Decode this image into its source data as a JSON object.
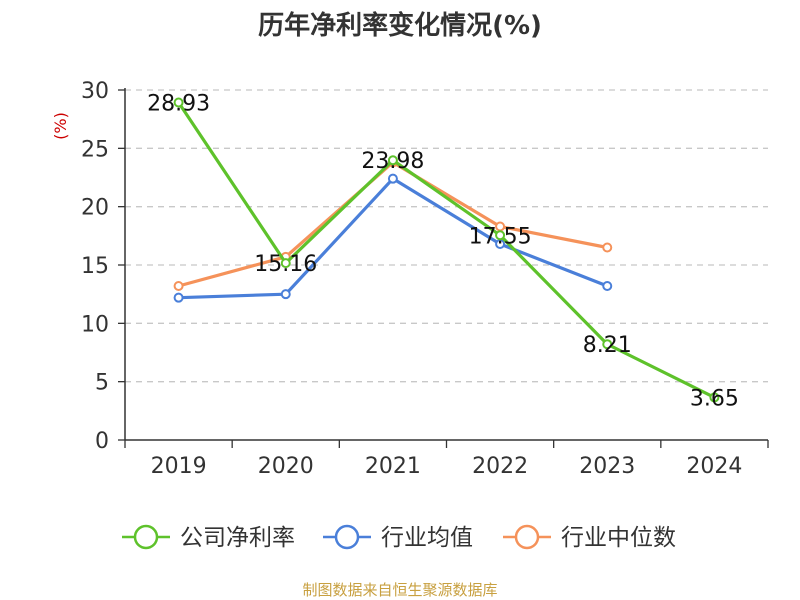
{
  "chart_data": {
    "type": "line",
    "title": "历年净利率变化情况(%)",
    "ylabel": "(%)",
    "categories": [
      "2019",
      "2020",
      "2021",
      "2022",
      "2023",
      "2024"
    ],
    "y_ticks": [
      "0",
      "5",
      "10",
      "15",
      "20",
      "25",
      "30"
    ],
    "ylim": [
      0,
      30
    ],
    "grid": true,
    "legend_position": "bottom",
    "series": [
      {
        "name": "公司净利率",
        "color": "#5ec22b",
        "values": [
          28.93,
          15.16,
          23.98,
          17.55,
          8.21,
          3.65
        ],
        "labels": [
          "28.93",
          "15.16",
          "23.98",
          "17.55",
          "8.21",
          "3.65"
        ]
      },
      {
        "name": "行业均值",
        "color": "#4a7fd9",
        "values": [
          12.2,
          12.5,
          22.4,
          16.8,
          13.2,
          null
        ]
      },
      {
        "name": "行业中位数",
        "color": "#f5925a",
        "values": [
          13.2,
          15.7,
          23.8,
          18.3,
          16.5,
          null
        ]
      }
    ]
  },
  "footer": "制图数据来自恒生聚源数据库"
}
